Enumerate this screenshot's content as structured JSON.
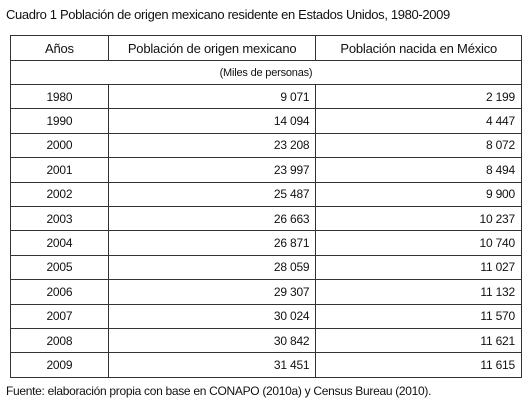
{
  "title": "Cuadro 1 Población de origen mexicano residente en Estados Unidos, 1980-2009",
  "table": {
    "headers": [
      "Años",
      "Población de origen mexicano",
      "Población nacida en México"
    ],
    "unit": "(Miles de personas)",
    "rows": [
      [
        "1980",
        "9 071",
        "2 199"
      ],
      [
        "1990",
        "14 094",
        "4 447"
      ],
      [
        "2000",
        "23 208",
        "8 072"
      ],
      [
        "2001",
        "23 997",
        "8 494"
      ],
      [
        "2002",
        "25 487",
        "9 900"
      ],
      [
        "2003",
        "26 663",
        "10 237"
      ],
      [
        "2004",
        "26 871",
        "10 740"
      ],
      [
        "2005",
        "28 059",
        "11 027"
      ],
      [
        "2006",
        "29 307",
        "11 132"
      ],
      [
        "2007",
        "30 024",
        "11 570"
      ],
      [
        "2008",
        "30 842",
        "11 621"
      ],
      [
        "2009",
        "31 451",
        "11 615"
      ]
    ]
  },
  "source": "Fuente: elaboración propia con base en CONAPO (2010a) y Census Bureau (2010)."
}
